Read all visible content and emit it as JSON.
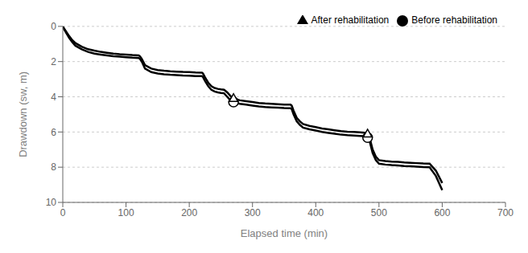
{
  "chart_data": {
    "type": "line",
    "title": "",
    "xlabel": "Elapsed time (min)",
    "ylabel": "Drawdown (sw, m)",
    "xlim": [
      0,
      700
    ],
    "ylim": [
      10,
      0
    ],
    "xticks": [
      0,
      100,
      200,
      300,
      400,
      500,
      600,
      700
    ],
    "yticks": [
      0,
      2,
      4,
      6,
      8,
      10
    ],
    "grid": true,
    "legend": "upper right",
    "x": [
      0,
      2,
      5,
      10,
      15,
      20,
      30,
      40,
      50,
      60,
      70,
      80,
      90,
      100,
      110,
      120,
      121,
      122,
      125,
      130,
      140,
      150,
      160,
      170,
      180,
      190,
      200,
      210,
      220,
      221,
      222,
      225,
      230,
      235,
      240,
      245,
      250,
      255,
      260,
      265,
      270,
      275,
      280,
      290,
      300,
      310,
      320,
      330,
      340,
      350,
      360,
      361,
      362,
      365,
      370,
      375,
      380,
      390,
      400,
      410,
      420,
      430,
      440,
      450,
      460,
      470,
      480,
      481,
      482,
      485,
      490,
      495,
      500,
      510,
      520,
      530,
      540,
      550,
      560,
      570,
      580,
      590,
      600
    ],
    "series": [
      {
        "name": "Before rehabilitation",
        "color": "#000000",
        "marker": "circle",
        "values": [
          0,
          0.15,
          0.35,
          0.65,
          0.9,
          1.1,
          1.3,
          1.45,
          1.55,
          1.6,
          1.65,
          1.7,
          1.72,
          1.75,
          1.78,
          1.8,
          1.82,
          1.85,
          2.0,
          2.4,
          2.6,
          2.68,
          2.72,
          2.75,
          2.77,
          2.79,
          2.8,
          2.82,
          2.83,
          2.85,
          2.9,
          3.1,
          3.4,
          3.6,
          3.7,
          3.75,
          3.78,
          3.8,
          4.0,
          4.2,
          4.3,
          4.35,
          4.4,
          4.45,
          4.5,
          4.55,
          4.58,
          4.6,
          4.62,
          4.64,
          4.65,
          4.67,
          4.7,
          5.0,
          5.4,
          5.6,
          5.75,
          5.85,
          5.92,
          6.0,
          6.05,
          6.1,
          6.15,
          6.18,
          6.2,
          6.22,
          6.25,
          6.28,
          6.32,
          6.5,
          7.2,
          7.6,
          7.8,
          7.85,
          7.88,
          7.9,
          7.93,
          7.95,
          7.97,
          7.99,
          8.0,
          8.5,
          9.3
        ]
      },
      {
        "name": "After rehabilitation",
        "color": "#000000",
        "marker": "triangle",
        "values": [
          0,
          0.12,
          0.28,
          0.55,
          0.78,
          0.95,
          1.15,
          1.3,
          1.38,
          1.45,
          1.5,
          1.55,
          1.58,
          1.6,
          1.63,
          1.65,
          1.67,
          1.7,
          1.85,
          2.2,
          2.4,
          2.48,
          2.52,
          2.55,
          2.57,
          2.59,
          2.6,
          2.62,
          2.63,
          2.65,
          2.7,
          2.9,
          3.2,
          3.4,
          3.5,
          3.55,
          3.58,
          3.6,
          3.75,
          3.95,
          4.1,
          4.15,
          4.2,
          4.25,
          4.3,
          4.35,
          4.38,
          4.4,
          4.42,
          4.44,
          4.45,
          4.47,
          4.5,
          4.8,
          5.2,
          5.4,
          5.55,
          5.65,
          5.72,
          5.8,
          5.85,
          5.9,
          5.95,
          5.98,
          6.0,
          6.02,
          6.05,
          6.08,
          6.12,
          6.3,
          7.0,
          7.4,
          7.6,
          7.65,
          7.68,
          7.7,
          7.73,
          7.75,
          7.77,
          7.79,
          7.8,
          8.2,
          8.9
        ]
      }
    ]
  }
}
